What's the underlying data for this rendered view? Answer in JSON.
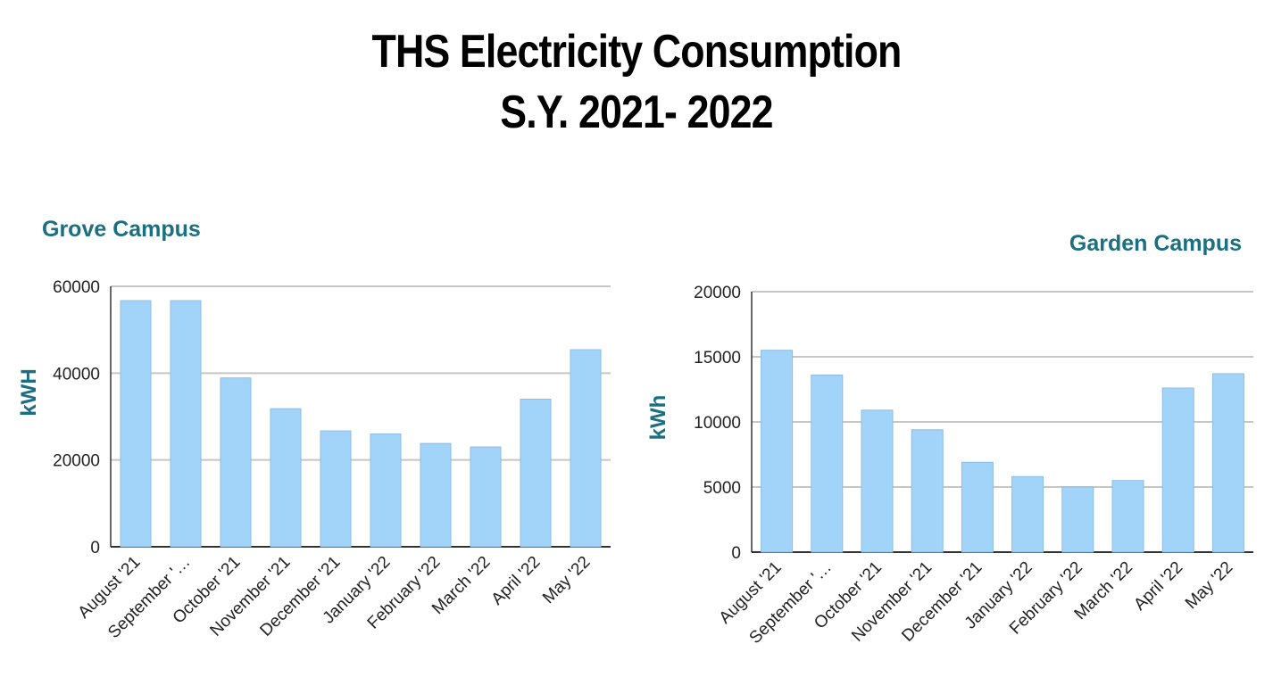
{
  "page": {
    "title_line_1": "THS Electricity Consumption",
    "title_line_2": "S.Y. 2021- 2022"
  },
  "colors": {
    "bar_fill": "#a2d4fa",
    "bar_stroke": "#8cbde0",
    "accent": "#1b6f80",
    "grid": "#c6c6c6",
    "axis": "#333333"
  },
  "chart_data": [
    {
      "type": "bar",
      "title": "Grove Campus",
      "title_align": "left",
      "ylabel": "kWH",
      "xlabel": "",
      "ylim": [
        0,
        60000
      ],
      "yticks": [
        0,
        20000,
        40000,
        60000
      ],
      "categories": [
        "August '21",
        "September '…",
        "October '21",
        "November '21",
        "December '21",
        "January '22",
        "February '22",
        "March '22",
        "April '22",
        "May '22"
      ],
      "values": [
        56700,
        56700,
        38900,
        31800,
        26700,
        26000,
        23800,
        23000,
        34000,
        45400
      ]
    },
    {
      "type": "bar",
      "title": "Garden Campus",
      "title_align": "right",
      "ylabel": "kWh",
      "xlabel": "",
      "ylim": [
        0,
        20000
      ],
      "yticks": [
        0,
        5000,
        10000,
        15000,
        20000
      ],
      "categories": [
        "August '21",
        "September '…",
        "October '21",
        "November '21",
        "December '21",
        "January '22",
        "February '22",
        "March '22",
        "April '22",
        "May '22"
      ],
      "values": [
        15500,
        13600,
        10900,
        9400,
        6900,
        5800,
        5000,
        5500,
        12600,
        13700
      ]
    }
  ]
}
